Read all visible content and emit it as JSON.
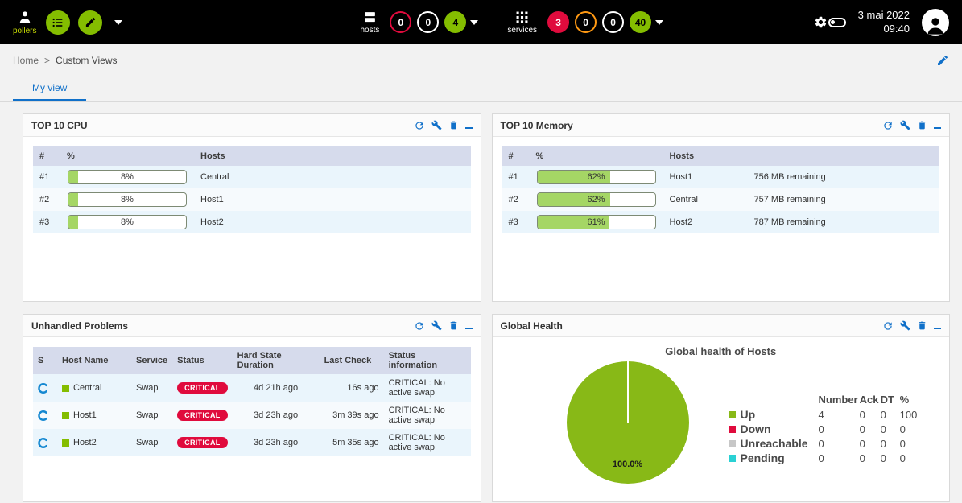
{
  "topbar": {
    "pollers": {
      "label": "pollers"
    },
    "hosts": {
      "label": "hosts",
      "badges": [
        {
          "name": "down",
          "value": "0",
          "style": "red-outline"
        },
        {
          "name": "unreachable",
          "value": "0",
          "style": "white-outline"
        },
        {
          "name": "up",
          "value": "4",
          "style": "green-filled"
        }
      ]
    },
    "services": {
      "label": "services",
      "badges": [
        {
          "name": "critical",
          "value": "3",
          "style": "red-filled"
        },
        {
          "name": "warning",
          "value": "0",
          "style": "orange-outline"
        },
        {
          "name": "unknown",
          "value": "0",
          "style": "white-outline"
        },
        {
          "name": "ok",
          "value": "40",
          "style": "green-filled"
        }
      ]
    },
    "clock": {
      "date": "3 mai 2022",
      "time": "09:40"
    }
  },
  "breadcrumb": {
    "items": [
      "Home",
      "Custom Views"
    ],
    "separator": ">"
  },
  "tabs": {
    "active": "My view"
  },
  "panels": {
    "top_cpu": {
      "title": "TOP 10 CPU",
      "columns": [
        "#",
        "%",
        "Hosts"
      ],
      "rows": [
        {
          "rank": "#1",
          "value": 8,
          "pct": "8%",
          "host": "Central"
        },
        {
          "rank": "#2",
          "value": 8,
          "pct": "8%",
          "host": "Host1"
        },
        {
          "rank": "#3",
          "value": 8,
          "pct": "8%",
          "host": "Host2"
        }
      ]
    },
    "top_memory": {
      "title": "TOP 10 Memory",
      "columns": [
        "#",
        "%",
        "Hosts"
      ],
      "rows": [
        {
          "rank": "#1",
          "value": 62,
          "pct": "62%",
          "host": "Host1",
          "remaining": "756 MB remaining"
        },
        {
          "rank": "#2",
          "value": 62,
          "pct": "62%",
          "host": "Central",
          "remaining": "757 MB remaining"
        },
        {
          "rank": "#3",
          "value": 61,
          "pct": "61%",
          "host": "Host2",
          "remaining": "787 MB remaining"
        }
      ]
    },
    "unhandled": {
      "title": "Unhandled Problems",
      "columns": [
        "S",
        "Host Name",
        "Service",
        "Status",
        "Hard State Duration",
        "Last Check",
        "Status information"
      ],
      "rows": [
        {
          "host": "Central",
          "service": "Swap",
          "status": "CRITICAL",
          "duration": "4d 21h ago",
          "last_check": "16s ago",
          "info": "CRITICAL: No active swap"
        },
        {
          "host": "Host1",
          "service": "Swap",
          "status": "CRITICAL",
          "duration": "3d 23h ago",
          "last_check": "3m 39s ago",
          "info": "CRITICAL: No active swap"
        },
        {
          "host": "Host2",
          "service": "Swap",
          "status": "CRITICAL",
          "duration": "3d 23h ago",
          "last_check": "5m 35s ago",
          "info": "CRITICAL: No active swap"
        }
      ]
    },
    "global_health": {
      "title": "Global Health",
      "chart_title": "Global health of Hosts",
      "pie_label": "100.0%",
      "legend_headers": [
        "Number",
        "Ack",
        "DT",
        "%"
      ],
      "legend": [
        {
          "label": "Up",
          "color": "#88B917",
          "number": "4",
          "ack": "0",
          "dt": "0",
          "pct": "100"
        },
        {
          "label": "Down",
          "color": "#E00B3D",
          "number": "0",
          "ack": "0",
          "dt": "0",
          "pct": "0"
        },
        {
          "label": "Unreachable",
          "color": "#C7C7C7",
          "number": "0",
          "ack": "0",
          "dt": "0",
          "pct": "0"
        },
        {
          "label": "Pending",
          "color": "#2AD1D4",
          "number": "0",
          "ack": "0",
          "dt": "0",
          "pct": "0"
        }
      ]
    }
  },
  "colors": {
    "accent_green": "#84BD00",
    "critical_red": "#E00B3D",
    "warning_orange": "#FF9913",
    "link_blue": "#1070C9",
    "progress_fill": "#A5D665"
  },
  "chart_data": {
    "type": "pie",
    "title": "Global health of Hosts",
    "labels": [
      "Up",
      "Down",
      "Unreachable",
      "Pending"
    ],
    "values": [
      100,
      0,
      0,
      0
    ],
    "colors": [
      "#88B917",
      "#E00B3D",
      "#C7C7C7",
      "#2AD1D4"
    ],
    "annotation": "100.0%",
    "legend_position": "right"
  }
}
